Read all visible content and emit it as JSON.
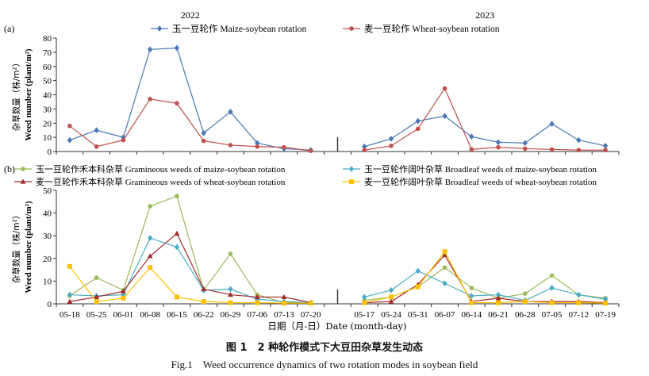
{
  "figure": {
    "caption_cn": "图 1　2 种轮作模式下大豆田杂草发生动态",
    "caption_en": "Fig.1　Weed occurrence dynamics of two rotation modes in soybean field",
    "xlabel": "日期（月-日）Date (month-day)"
  },
  "chart_data": [
    {
      "type": "line",
      "panel_label": "(a)",
      "year_labels": [
        "2022",
        "2023"
      ],
      "ylabel_cn": "杂草数量（株/m²）",
      "ylabel_en": "Weed number (plant/m²)",
      "ylim": [
        0,
        80
      ],
      "yticks": [
        "0",
        "10",
        "20",
        "30",
        "40",
        "50",
        "60",
        "70",
        "80"
      ],
      "categories_2022": [
        "05-18",
        "05-25",
        "06-01",
        "06-08",
        "06-15",
        "06-22",
        "06-29",
        "07-06",
        "07-13",
        "07-20"
      ],
      "categories_2023": [
        "05-17",
        "05-24",
        "05-31",
        "06-07",
        "06-14",
        "06-21",
        "06-28",
        "07-05",
        "07-12",
        "07-19"
      ],
      "series": [
        {
          "name": "玉一豆轮作 Maize-soybean rotation",
          "color": "#4a78b5",
          "marker": "diamond",
          "values_2022": [
            8,
            15,
            10,
            72,
            73,
            13,
            28,
            6,
            2,
            1
          ],
          "values_2023": [
            3.5,
            9,
            21.5,
            25,
            10.5,
            6.5,
            6,
            19.5,
            8,
            4
          ]
        },
        {
          "name": "麦一豆轮作 Wheat-soybean rotation",
          "color": "#c0504d",
          "marker": "circle",
          "values_2022": [
            18,
            3.5,
            8,
            37,
            34,
            7.5,
            4.5,
            3.5,
            3,
            0.5
          ],
          "values_2023": [
            1,
            4,
            16,
            44.5,
            1.5,
            3,
            2,
            1.5,
            1,
            1
          ]
        }
      ]
    },
    {
      "type": "line",
      "panel_label": "(b)",
      "ylabel_cn": "杂草数量（株/m²）",
      "ylabel_en": "Weed number (plant/m²)",
      "ylim": [
        0,
        50
      ],
      "yticks": [
        "0",
        "10",
        "20",
        "30",
        "40",
        "50"
      ],
      "categories_2022": [
        "05-18",
        "05-25",
        "06-01",
        "06-08",
        "06-15",
        "06-22",
        "06-29",
        "07-06",
        "07-13",
        "07-20"
      ],
      "categories_2023": [
        "05-17",
        "05-24",
        "05-31",
        "06-07",
        "06-14",
        "06-21",
        "06-28",
        "07-05",
        "07-12",
        "07-19"
      ],
      "series": [
        {
          "name": "玉一豆轮作禾本科杂草 Gramineous weeds of maize-soybean rotation",
          "color": "#9bbb59",
          "marker": "circle",
          "values_2022": [
            3.5,
            11.5,
            6,
            43,
            47.5,
            6,
            22,
            4,
            0.5,
            0.5
          ],
          "values_2023": [
            1.5,
            3,
            7.5,
            16,
            7,
            2.5,
            4.5,
            12.5,
            4,
            2.5
          ]
        },
        {
          "name": "玉一豆轮作阔叶杂草 Broadleaf weeds of maize-soybean rotation",
          "color": "#4bacc6",
          "marker": "diamond",
          "values_2022": [
            4,
            3.5,
            4,
            29,
            25,
            6,
            6.5,
            2,
            1,
            0.5
          ],
          "values_2023": [
            3,
            6,
            14.5,
            9,
            3.5,
            4,
            1.5,
            7,
            4,
            2
          ]
        },
        {
          "name": "麦一豆轮作禾本科杂草 Gramineous weeds of wheat-soybean rotation",
          "color": "#a52a2a",
          "marker": "triangle",
          "values_2022": [
            1,
            3,
            5.5,
            21,
            31,
            6.5,
            4,
            3,
            3,
            0.5
          ],
          "values_2023": [
            0.5,
            1,
            8.5,
            21.5,
            1,
            2.5,
            1,
            1,
            1,
            0.5
          ]
        },
        {
          "name": "麦一豆轮作阔叶杂草 Broadleaf weeds of wheat-soybean rotation",
          "color": "#ffc000",
          "marker": "square",
          "values_2022": [
            16.5,
            1,
            2.5,
            16,
            3,
            1,
            0.5,
            0.5,
            0.3,
            0.3
          ],
          "values_2023": [
            0.5,
            3,
            7.5,
            23,
            0.5,
            0.5,
            1,
            0.5,
            0.5,
            0.3
          ]
        }
      ]
    }
  ]
}
